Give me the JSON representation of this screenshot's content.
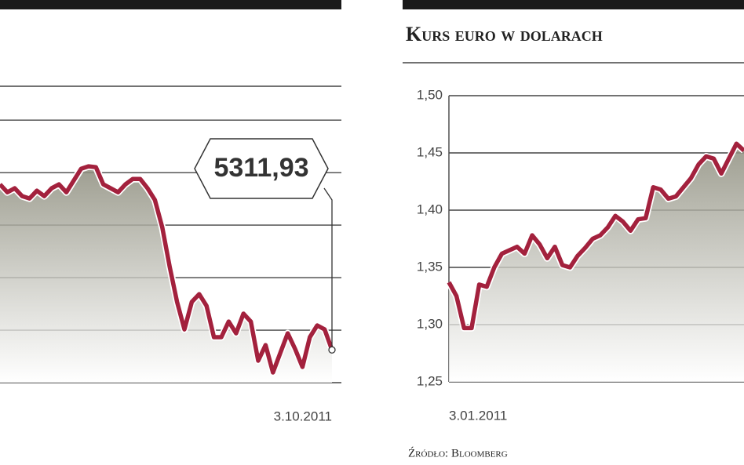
{
  "chart_data": [
    {
      "type": "line",
      "color": "#a3213d",
      "grid": true,
      "ytick_labels": false,
      "ylim": [
        5000,
        7800
      ],
      "yticks": [
        5000,
        5500,
        6000,
        6500,
        7000,
        7500
      ],
      "categories": [
        null,
        null,
        null,
        null,
        null,
        null,
        null,
        null,
        null,
        null,
        null,
        null,
        null,
        null,
        null,
        null,
        null,
        null,
        null,
        null,
        null,
        null,
        null,
        null,
        null,
        null,
        null,
        null,
        null,
        null,
        null,
        null,
        null,
        null,
        null,
        null,
        null,
        null,
        null,
        null,
        null,
        null,
        null,
        null,
        null,
        "3.10.2011"
      ],
      "values": [
        6888,
        6813,
        6851,
        6776,
        6754,
        6828,
        6776,
        6851,
        6888,
        6813,
        6925,
        7037,
        7060,
        7052,
        6888,
        6851,
        6813,
        6888,
        6940,
        6940,
        6851,
        6739,
        6478,
        6104,
        5769,
        5507,
        5769,
        5843,
        5731,
        5433,
        5433,
        5582,
        5470,
        5657,
        5582,
        5209,
        5358,
        5097,
        5284,
        5470,
        5321,
        5149,
        5433,
        5545,
        5507,
        5311.93
      ],
      "value_labels": [
        null,
        null,
        null,
        null,
        null,
        null,
        null,
        null,
        null,
        null,
        null,
        null,
        null,
        null,
        null,
        null,
        null,
        null,
        null,
        null,
        null,
        null,
        null,
        null,
        null,
        null,
        null,
        null,
        null,
        null,
        null,
        null,
        null,
        null,
        null,
        null,
        null,
        null,
        null,
        null,
        null,
        null,
        null,
        null,
        null,
        "5311,93"
      ]
    },
    {
      "type": "line",
      "title": "Kurs euro w dolarach",
      "source": "Źródło: Bloomberg",
      "color": "#a3213d",
      "grid": true,
      "ytick_labels": true,
      "ylim": [
        1.25,
        1.5
      ],
      "yticks": [
        {
          "value": 1.25,
          "label": "1,25"
        },
        {
          "value": 1.3,
          "label": "1,30"
        },
        {
          "value": 1.35,
          "label": "1,35"
        },
        {
          "value": 1.4,
          "label": "1,40"
        },
        {
          "value": 1.45,
          "label": "1,45"
        },
        {
          "value": 1.5,
          "label": "1,50"
        }
      ],
      "categories": [
        "3.01.2011",
        null,
        null,
        null,
        null,
        null,
        null,
        null,
        null,
        null,
        null,
        null,
        null,
        null,
        null,
        null,
        null,
        null,
        null,
        null,
        null,
        null,
        null,
        null,
        null,
        null,
        null,
        null,
        null,
        null,
        null,
        null,
        null,
        null,
        null,
        null,
        null,
        null,
        null,
        null
      ],
      "values": [
        1.337,
        1.325,
        1.297,
        1.297,
        1.335,
        1.333,
        1.35,
        1.362,
        1.365,
        1.368,
        1.362,
        1.378,
        1.37,
        1.358,
        1.368,
        1.352,
        1.35,
        1.36,
        1.367,
        1.375,
        1.378,
        1.385,
        1.395,
        1.39,
        1.382,
        1.392,
        1.393,
        1.42,
        1.418,
        1.41,
        1.412,
        1.42,
        1.428,
        1.44,
        1.447,
        1.445,
        1.432,
        1.445,
        1.458,
        1.452
      ]
    }
  ]
}
